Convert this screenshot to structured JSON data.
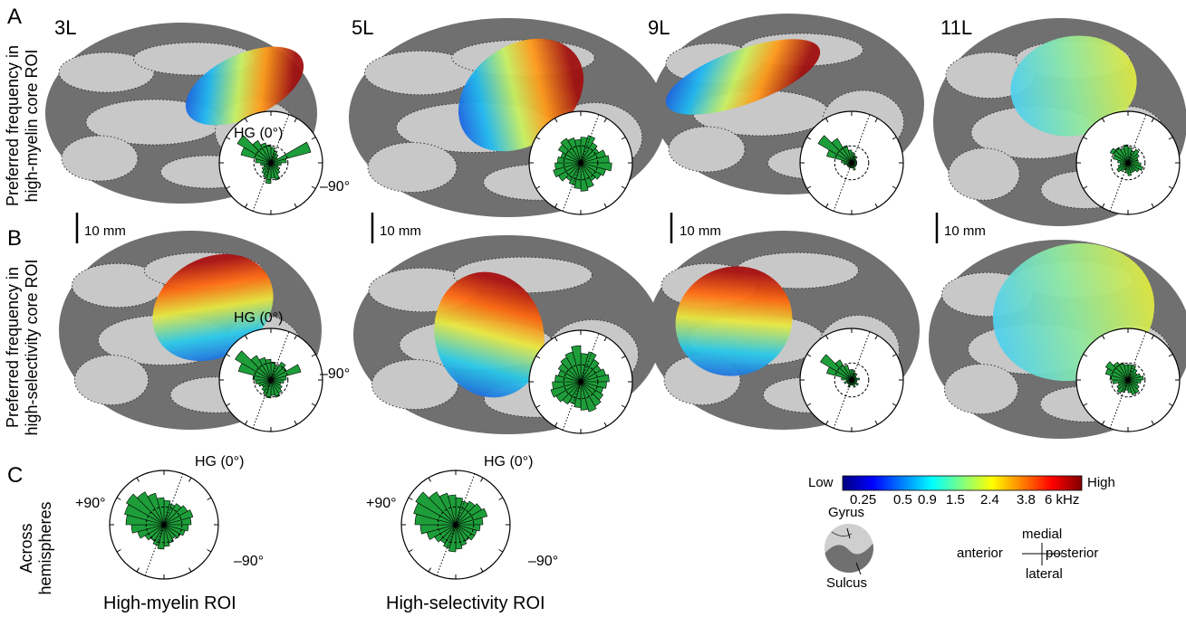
{
  "panels": {
    "A": {
      "letter": "A",
      "row_label_line1": "Preferred frequency in",
      "row_label_line2": "high-myelin core ROI"
    },
    "B": {
      "letter": "B",
      "row_label_line1": "Preferred frequency in",
      "row_label_line2": "high-selectivity core ROI"
    },
    "C": {
      "letter": "C",
      "row_label_line1": "Across",
      "row_label_line2": "hemispheres"
    }
  },
  "subjects": [
    "3L",
    "5L",
    "9L",
    "11L"
  ],
  "scale_bar": "10 mm",
  "polar_labels": {
    "hg": "HG (0°)",
    "minus90": "–90°",
    "plus90": "+90°",
    "minus90_c": "–90°"
  },
  "summary_captions": [
    "High-myelin ROI",
    "High-selectivity ROI"
  ],
  "colorbar": {
    "low": "Low",
    "high": "High",
    "ticks": [
      "0.25",
      "0.5",
      "0.9",
      "1.5",
      "2.4",
      "3.8",
      "6 kHz"
    ],
    "colors": [
      "#00007f",
      "#0000ff",
      "#0080ff",
      "#00ffff",
      "#80ff80",
      "#ffff00",
      "#ff8000",
      "#ff0000",
      "#7f0000"
    ]
  },
  "legend": {
    "gyrus": "Gyrus",
    "sulcus": "Sulcus"
  },
  "orientation": {
    "medial": "medial",
    "lateral": "lateral",
    "anterior": "anterior",
    "posterior": "posterior"
  },
  "colors": {
    "brain_gyrus": "#c8c8c8",
    "brain_sulcus": "#707070",
    "rose_fill": "#1e9e3a",
    "rose_edge": "#000000"
  }
}
